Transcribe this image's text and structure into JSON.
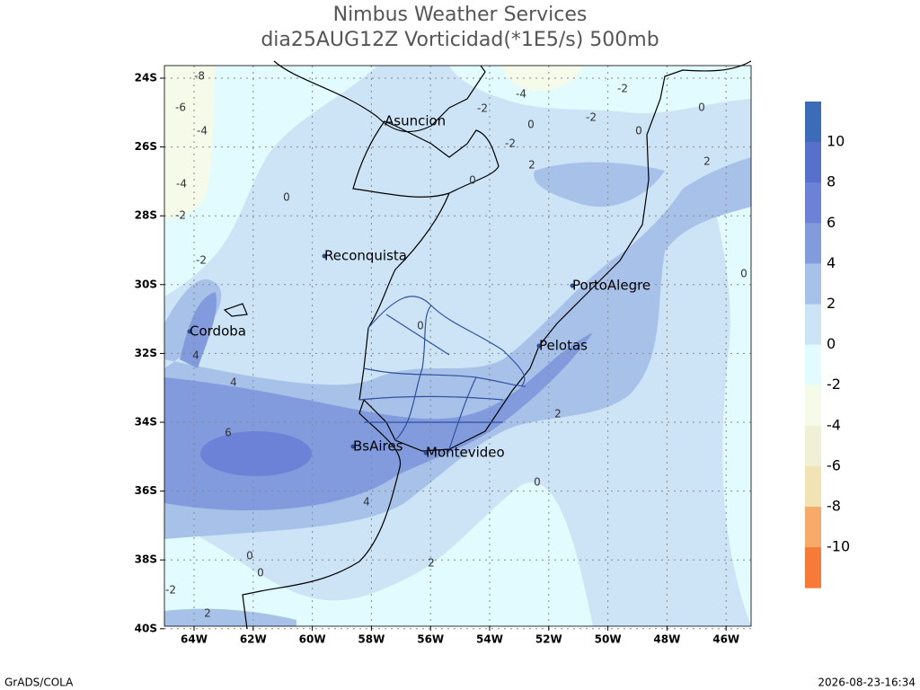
{
  "header": {
    "title": "Nimbus Weather Services",
    "subtitle": "dia25AUG12Z Vorticidad(*1E5/s) 500mb"
  },
  "map": {
    "lat_labels": [
      "24S",
      "26S",
      "28S",
      "30S",
      "32S",
      "34S",
      "36S",
      "38S",
      "40S"
    ],
    "lon_labels": [
      "64W",
      "62W",
      "60W",
      "58W",
      "56W",
      "54W",
      "52W",
      "50W",
      "48W",
      "46W"
    ],
    "cities": [
      "Asuncion",
      "Reconquista",
      "PortoAlegre",
      "Cordoba",
      "Pelotas",
      "BsAires",
      "Montevideo"
    ],
    "contour_labels": [
      "-8",
      "-6",
      "-4",
      "-4",
      "-2",
      "-2",
      "0",
      "-4",
      "-2",
      "-2",
      "0",
      "-2",
      "-2",
      "0",
      "0",
      "2",
      "2",
      "0",
      "0",
      "4",
      "4",
      "6",
      "4",
      "2",
      "0",
      "0",
      "0",
      "2",
      "2",
      "-2",
      "0"
    ]
  },
  "colorbar": {
    "labels": [
      "10",
      "8",
      "6",
      "4",
      "2",
      "0",
      "-2",
      "-4",
      "-6",
      "-8",
      "-10"
    ],
    "colors": [
      "#3c6cb8",
      "#5670cb",
      "#6c82d6",
      "#819bdd",
      "#a8c1e9",
      "#cde4f6",
      "#e1fbfe",
      "#f5fbe8",
      "#eff0d6",
      "#f1e3b4",
      "#f8aa6a",
      "#f77b38"
    ]
  },
  "footer": {
    "left": "GrADS/COLA",
    "right": "2026-08-23-16:34"
  }
}
